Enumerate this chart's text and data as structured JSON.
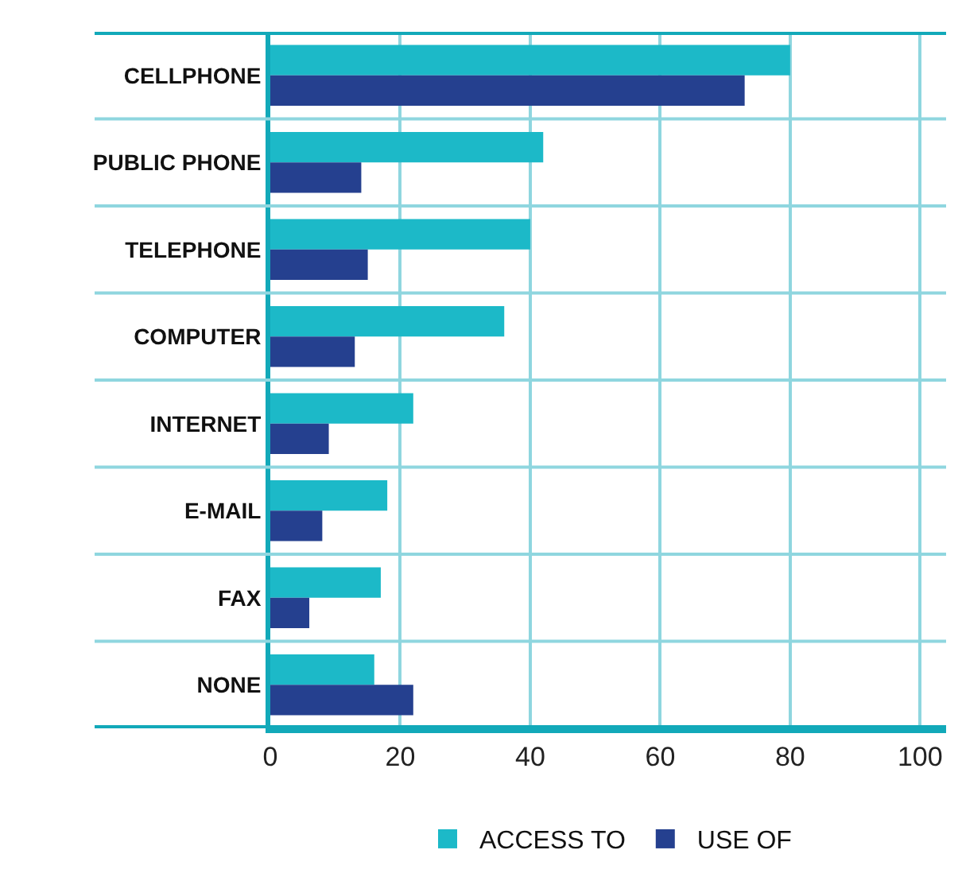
{
  "chart_data": {
    "type": "bar",
    "orientation": "horizontal",
    "categories": [
      "CELLPHONE",
      "PUBLIC PHONE",
      "TELEPHONE",
      "COMPUTER",
      "INTERNET",
      "E-MAIL",
      "FAX",
      "NONE"
    ],
    "series": [
      {
        "name": "ACCESS TO",
        "color": "#1cb9c8",
        "values": [
          80,
          42,
          40,
          36,
          22,
          18,
          17,
          16
        ]
      },
      {
        "name": "USE OF",
        "color": "#25408f",
        "values": [
          73,
          14,
          15,
          13,
          9,
          8,
          6,
          22
        ]
      }
    ],
    "xlim": [
      0,
      104
    ],
    "xticks": [
      0,
      20,
      40,
      60,
      80,
      100
    ],
    "grid": "x",
    "legend": "bottom"
  }
}
